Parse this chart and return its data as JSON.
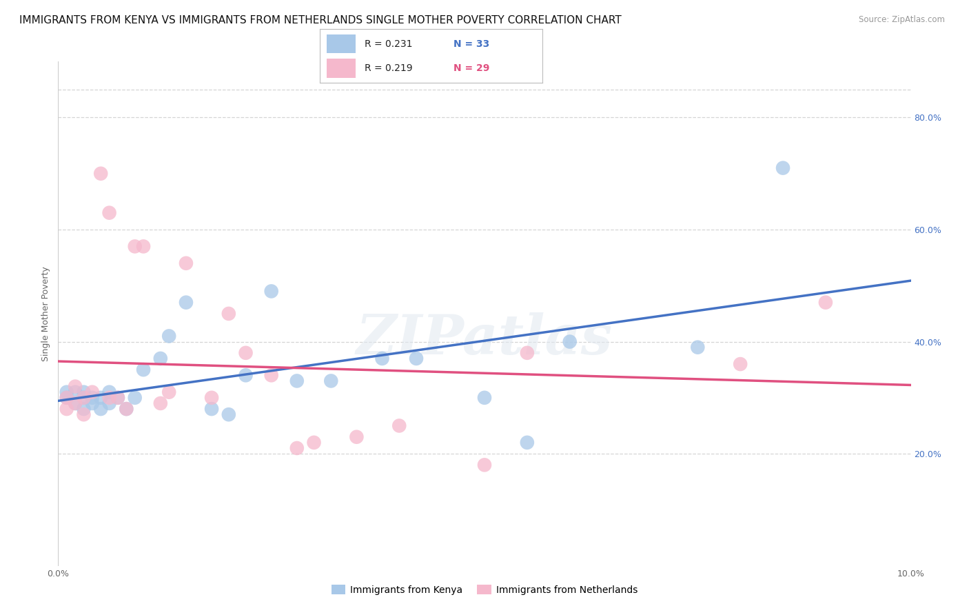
{
  "title": "IMMIGRANTS FROM KENYA VS IMMIGRANTS FROM NETHERLANDS SINGLE MOTHER POVERTY CORRELATION CHART",
  "source": "Source: ZipAtlas.com",
  "ylabel": "Single Mother Poverty",
  "xlim": [
    0.0,
    0.1
  ],
  "ylim": [
    0.0,
    0.9
  ],
  "right_ytick_labels": [
    "20.0%",
    "40.0%",
    "60.0%",
    "80.0%"
  ],
  "right_ytick_values": [
    0.2,
    0.4,
    0.6,
    0.8
  ],
  "xtick_labels": [
    "0.0%",
    "10.0%"
  ],
  "xtick_values": [
    0.0,
    0.1
  ],
  "kenya_R": 0.231,
  "kenya_N": 33,
  "netherlands_R": 0.219,
  "netherlands_N": 29,
  "kenya_color": "#a8c8e8",
  "netherlands_color": "#f5b8cc",
  "kenya_line_color": "#4472c4",
  "netherlands_line_color": "#e05080",
  "kenya_x": [
    0.001,
    0.001,
    0.002,
    0.002,
    0.003,
    0.003,
    0.003,
    0.004,
    0.004,
    0.005,
    0.005,
    0.006,
    0.006,
    0.007,
    0.008,
    0.009,
    0.01,
    0.012,
    0.013,
    0.015,
    0.018,
    0.02,
    0.022,
    0.025,
    0.028,
    0.032,
    0.038,
    0.042,
    0.05,
    0.055,
    0.06,
    0.075,
    0.085
  ],
  "kenya_y": [
    0.31,
    0.3,
    0.31,
    0.29,
    0.31,
    0.3,
    0.28,
    0.3,
    0.29,
    0.3,
    0.28,
    0.31,
    0.29,
    0.3,
    0.28,
    0.3,
    0.35,
    0.37,
    0.41,
    0.47,
    0.28,
    0.27,
    0.34,
    0.49,
    0.33,
    0.33,
    0.37,
    0.37,
    0.3,
    0.22,
    0.4,
    0.39,
    0.71
  ],
  "netherlands_x": [
    0.001,
    0.001,
    0.002,
    0.002,
    0.003,
    0.003,
    0.004,
    0.005,
    0.006,
    0.006,
    0.007,
    0.008,
    0.009,
    0.01,
    0.012,
    0.013,
    0.015,
    0.018,
    0.02,
    0.022,
    0.025,
    0.028,
    0.03,
    0.035,
    0.04,
    0.05,
    0.055,
    0.08,
    0.09
  ],
  "netherlands_y": [
    0.3,
    0.28,
    0.32,
    0.29,
    0.3,
    0.27,
    0.31,
    0.7,
    0.63,
    0.3,
    0.3,
    0.28,
    0.57,
    0.57,
    0.29,
    0.31,
    0.54,
    0.3,
    0.45,
    0.38,
    0.34,
    0.21,
    0.22,
    0.23,
    0.25,
    0.18,
    0.38,
    0.36,
    0.47
  ],
  "grid_color": "#d5d5d5",
  "background_color": "#ffffff",
  "title_fontsize": 11,
  "axis_fontsize": 9,
  "legend_fontsize": 10,
  "watermark": "ZIPatlas"
}
